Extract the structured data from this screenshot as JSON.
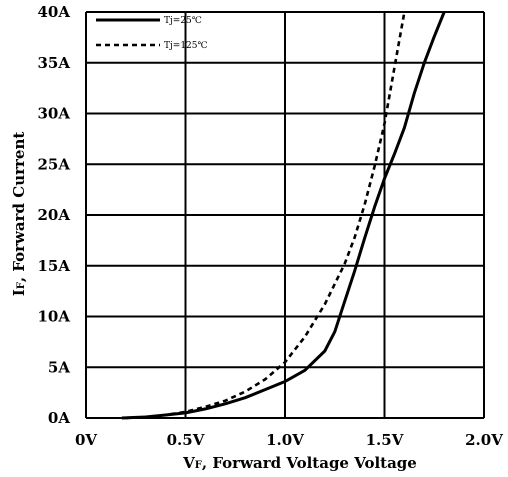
{
  "chart_data": {
    "type": "line",
    "title": "",
    "xlabel_main": "V",
    "xlabel_sub": "F",
    "xlabel_rest": ", Forward Voltage Voltage",
    "ylabel_main": "I",
    "ylabel_sub": "F",
    "ylabel_rest": ", Forward Current",
    "xlim": [
      0,
      2.0
    ],
    "ylim": [
      0,
      40
    ],
    "x_ticks": [
      0,
      0.5,
      1.0,
      1.5,
      2.0
    ],
    "x_tick_labels": [
      "0V",
      "0.5V",
      "1.0V",
      "1.5V",
      "2.0V"
    ],
    "y_ticks": [
      0,
      5,
      10,
      15,
      20,
      25,
      30,
      35,
      40
    ],
    "y_tick_labels": [
      "0A",
      "5A",
      "10A",
      "15A",
      "20A",
      "25A",
      "30A",
      "35A",
      "40A"
    ],
    "grid": true,
    "legend_position": "top-left",
    "series": [
      {
        "name": "Tj=25℃",
        "style": "solid",
        "color": "#000000",
        "x": [
          0.18,
          0.3,
          0.4,
          0.5,
          0.6,
          0.7,
          0.8,
          0.9,
          1.0,
          1.1,
          1.2,
          1.25,
          1.3,
          1.35,
          1.4,
          1.45,
          1.5,
          1.55,
          1.6,
          1.65,
          1.7,
          1.75,
          1.8
        ],
        "y": [
          0,
          0.1,
          0.3,
          0.5,
          0.9,
          1.4,
          2.0,
          2.8,
          3.6,
          4.7,
          6.6,
          8.5,
          11.5,
          14.5,
          17.7,
          20.8,
          23.6,
          26.0,
          28.6,
          32.0,
          35.0,
          37.6,
          40.0
        ]
      },
      {
        "name": "Tj=125℃",
        "style": "dashed",
        "color": "#000000",
        "x": [
          0.2,
          0.3,
          0.4,
          0.5,
          0.6,
          0.7,
          0.8,
          0.9,
          1.0,
          1.1,
          1.2,
          1.3,
          1.35,
          1.4,
          1.45,
          1.5,
          1.55,
          1.6
        ],
        "y": [
          0,
          0.1,
          0.3,
          0.6,
          1.1,
          1.7,
          2.6,
          3.8,
          5.5,
          8.0,
          11.2,
          15.2,
          17.8,
          21.0,
          24.8,
          29.0,
          34.5,
          40.0
        ]
      }
    ]
  }
}
